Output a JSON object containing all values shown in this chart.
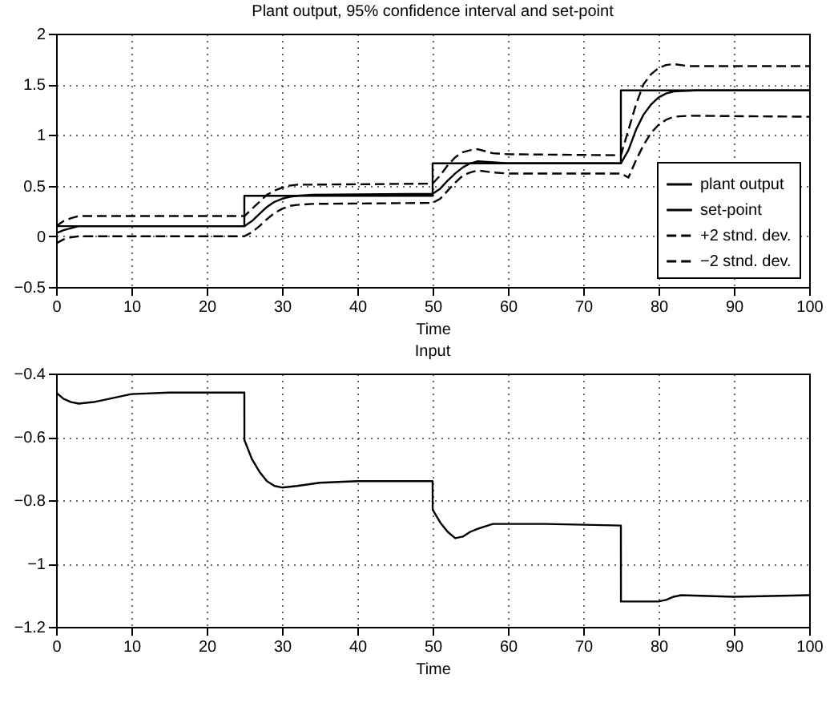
{
  "chart_data": [
    {
      "type": "line",
      "title": "Plant output, 95% confidence interval and set-point",
      "xlabel": "Time",
      "xlim": [
        0,
        100
      ],
      "xticks": [
        0,
        10,
        20,
        30,
        40,
        50,
        60,
        70,
        80,
        90,
        100
      ],
      "ylim": [
        -0.5,
        2
      ],
      "yticks": [
        -0.5,
        0,
        0.5,
        1,
        1.5,
        2
      ],
      "grid": true,
      "legend": "bottom right",
      "series": [
        {
          "name": "plant output",
          "color": "#000000",
          "line_style": "solid",
          "x": [
            0,
            1,
            2,
            3,
            5,
            25,
            26,
            27,
            28,
            29,
            30,
            31,
            32,
            34,
            50,
            51,
            52,
            53,
            54,
            55,
            56,
            58,
            60,
            75,
            76,
            77,
            78,
            79,
            80,
            81,
            82,
            85,
            100
          ],
          "values": [
            0.03,
            0.06,
            0.08,
            0.1,
            0.1,
            0.1,
            0.15,
            0.22,
            0.29,
            0.34,
            0.37,
            0.39,
            0.4,
            0.41,
            0.42,
            0.47,
            0.55,
            0.62,
            0.68,
            0.72,
            0.74,
            0.73,
            0.72,
            0.72,
            0.85,
            1.05,
            1.2,
            1.3,
            1.37,
            1.41,
            1.43,
            1.44,
            1.44
          ]
        },
        {
          "name": "set-point",
          "type": "step",
          "color": "#000000",
          "line_style": "solid",
          "x": [
            0,
            25,
            50,
            75,
            100
          ],
          "values": [
            0.1,
            0.4,
            0.72,
            1.44,
            1.44
          ]
        },
        {
          "name": "+2 stnd. dev.",
          "color": "#000000",
          "line_style": "dashed",
          "x": [
            0,
            1,
            2,
            3,
            5,
            25,
            26,
            27,
            28,
            29,
            30,
            31,
            32,
            34,
            50,
            51,
            52,
            53,
            54,
            55,
            56,
            58,
            60,
            75,
            76,
            77,
            78,
            79,
            80,
            81,
            82,
            84,
            100
          ],
          "values": [
            0.1,
            0.15,
            0.18,
            0.2,
            0.2,
            0.2,
            0.27,
            0.34,
            0.41,
            0.45,
            0.48,
            0.5,
            0.51,
            0.51,
            0.52,
            0.6,
            0.7,
            0.78,
            0.83,
            0.85,
            0.86,
            0.82,
            0.81,
            0.8,
            1.05,
            1.3,
            1.5,
            1.6,
            1.66,
            1.69,
            1.7,
            1.68,
            1.68
          ]
        },
        {
          "name": "−2 stnd. dev.",
          "color": "#000000",
          "line_style": "dashed",
          "x": [
            0,
            1,
            2,
            3,
            5,
            25,
            26,
            27,
            28,
            29,
            30,
            31,
            32,
            34,
            50,
            51,
            52,
            53,
            54,
            55,
            56,
            58,
            60,
            75,
            76,
            77,
            78,
            79,
            80,
            81,
            82,
            84,
            100
          ],
          "values": [
            -0.07,
            -0.03,
            -0.01,
            0.0,
            0.0,
            0.0,
            0.04,
            0.1,
            0.17,
            0.23,
            0.27,
            0.3,
            0.31,
            0.32,
            0.33,
            0.37,
            0.45,
            0.53,
            0.6,
            0.63,
            0.65,
            0.63,
            0.62,
            0.62,
            0.58,
            0.75,
            0.9,
            1.02,
            1.1,
            1.15,
            1.18,
            1.19,
            1.18
          ]
        }
      ]
    },
    {
      "type": "line",
      "title": "Input",
      "xlabel": "Time",
      "xlim": [
        0,
        100
      ],
      "xticks": [
        0,
        10,
        20,
        30,
        40,
        50,
        60,
        70,
        80,
        90,
        100
      ],
      "ylim": [
        -1.2,
        -0.4
      ],
      "yticks": [
        -1.2,
        -1,
        -0.8,
        -0.6,
        -0.4
      ],
      "grid": true,
      "series": [
        {
          "color": "#000000",
          "line_style": "solid",
          "x": [
            0,
            1,
            2,
            3,
            5,
            8,
            10,
            15,
            25,
            25.01,
            26,
            27,
            28,
            29,
            30,
            32,
            35,
            40,
            50,
            50.01,
            51,
            52,
            53,
            54,
            55,
            56,
            58,
            65,
            75,
            75.01,
            80,
            81,
            82,
            83,
            90,
            100
          ],
          "values": [
            -0.46,
            -0.48,
            -0.49,
            -0.495,
            -0.49,
            -0.475,
            -0.465,
            -0.46,
            -0.46,
            -0.61,
            -0.67,
            -0.71,
            -0.74,
            -0.755,
            -0.76,
            -0.755,
            -0.745,
            -0.74,
            -0.74,
            -0.83,
            -0.87,
            -0.9,
            -0.92,
            -0.915,
            -0.9,
            -0.89,
            -0.875,
            -0.875,
            -0.88,
            -1.12,
            -1.12,
            -1.115,
            -1.105,
            -1.1,
            -1.105,
            -1.1
          ]
        }
      ]
    }
  ]
}
